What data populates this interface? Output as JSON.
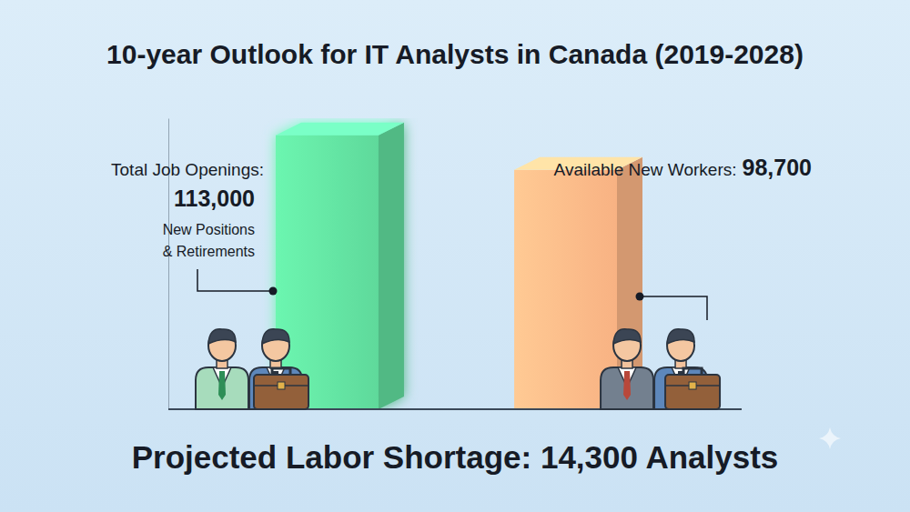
{
  "chart_data": {
    "type": "bar",
    "title": "10-year Outlook for IT Analysts in Canada (2019-2028)",
    "categories": [
      "Total Job Openings:",
      "Available New Workers:"
    ],
    "values": [
      113000,
      98700
    ],
    "value_labels": [
      "113,000",
      "98,700"
    ],
    "colors": [
      "#5fd99b",
      "#f8b283"
    ],
    "data_labels": true,
    "tick_labels": false,
    "ylim": [
      0,
      120000
    ],
    "yticks": [],
    "annotations": [
      "New Positions & Retirements",
      "Projected Labor Shortage: 14,300 Analysts"
    ]
  }
}
